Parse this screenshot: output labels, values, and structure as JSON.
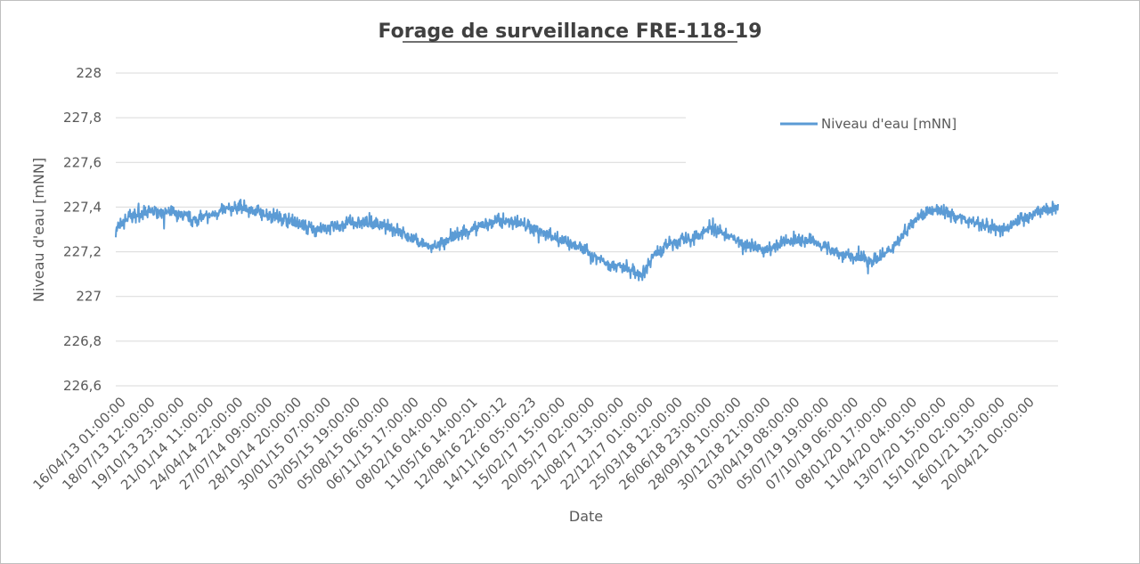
{
  "chart_data": {
    "type": "line",
    "title": "Forage de surveillance FRE-118-19",
    "xlabel": "Date",
    "ylabel": "Niveau d'eau [mNN]",
    "ylim": [
      226.6,
      228
    ],
    "y_ticks": [
      226.6,
      226.8,
      227,
      227.2,
      227.4,
      227.6,
      227.8,
      228
    ],
    "y_tick_labels": [
      "226,6",
      "226,8",
      "227",
      "227,2",
      "227,4",
      "227,6",
      "227,8",
      "228"
    ],
    "grid": true,
    "legend_position": "top-right",
    "x_tick_labels": [
      "16/04/13 01:00:00",
      "18/07/13 12:00:00",
      "19/10/13 23:00:00",
      "21/01/14 11:00:00",
      "24/04/14 22:00:00",
      "27/07/14 09:00:00",
      "28/10/14 20:00:00",
      "30/01/15 07:00:00",
      "03/05/15 19:00:00",
      "05/08/15 06:00:00",
      "06/11/15 17:00:00",
      "08/02/16 04:00:00",
      "11/05/16 14:00:01",
      "12/08/16 22:00:12",
      "14/11/16 05:00:23",
      "15/02/17 15:00:00",
      "20/05/17 02:00:00",
      "21/08/17 13:00:00",
      "22/12/17 01:00:00",
      "25/03/18 12:00:00",
      "26/06/18 23:00:00",
      "28/09/18 10:00:00",
      "30/12/18 21:00:00",
      "03/04/19 08:00:00",
      "05/07/19 19:00:00",
      "07/10/19 06:00:00",
      "08/01/20 17:00:00",
      "11/04/20 04:00:00",
      "13/07/20 15:00:00",
      "15/10/20 02:00:00",
      "16/01/21 13:00:00",
      "20/04/21 00:00:00"
    ],
    "series": [
      {
        "name": "Niveau d'eau [mNN]",
        "color": "#5b9bd5",
        "x": [
          "16/04/13",
          "01/06/13",
          "15/08/13",
          "01/11/13",
          "15/12/13",
          "01/02/14",
          "01/04/14",
          "15/05/14",
          "01/07/14",
          "01/09/14",
          "15/10/14",
          "01/12/14",
          "15/01/15",
          "01/03/15",
          "15/04/15",
          "01/06/15",
          "01/08/15",
          "01/10/15",
          "15/11/15",
          "01/01/16",
          "15/02/16",
          "01/04/16",
          "15/05/16",
          "01/07/16",
          "15/08/16",
          "01/10/16",
          "15/11/16",
          "01/01/17",
          "01/03/17",
          "15/04/17",
          "01/06/17",
          "15/07/17",
          "15/09/17",
          "01/11/17",
          "01/12/17",
          "15/01/18",
          "01/03/18",
          "15/04/18",
          "01/06/18",
          "15/07/18",
          "01/09/18",
          "15/10/18",
          "01/12/18",
          "15/01/19",
          "01/03/19",
          "15/04/19",
          "01/06/19",
          "15/07/19",
          "15/09/19",
          "01/11/19",
          "15/12/19",
          "01/02/20",
          "01/03/20",
          "15/04/20",
          "01/06/20",
          "01/08/20",
          "15/09/20",
          "01/11/20",
          "15/12/20",
          "01/02/21",
          "01/04/21",
          "15/05/21",
          "01/06/21"
        ],
        "y": [
          227.3,
          227.36,
          227.38,
          227.37,
          227.34,
          227.36,
          227.39,
          227.4,
          227.38,
          227.36,
          227.34,
          227.31,
          227.3,
          227.31,
          227.33,
          227.33,
          227.32,
          227.29,
          227.25,
          227.22,
          227.24,
          227.28,
          227.3,
          227.33,
          227.34,
          227.33,
          227.31,
          227.28,
          227.24,
          227.22,
          227.18,
          227.15,
          227.12,
          227.1,
          227.18,
          227.23,
          227.25,
          227.26,
          227.31,
          227.28,
          227.25,
          227.22,
          227.21,
          227.24,
          227.25,
          227.25,
          227.22,
          227.19,
          227.17,
          227.16,
          227.2,
          227.28,
          227.34,
          227.38,
          227.38,
          227.35,
          227.33,
          227.31,
          227.3,
          227.34,
          227.38,
          227.39,
          227.4
        ]
      }
    ]
  }
}
